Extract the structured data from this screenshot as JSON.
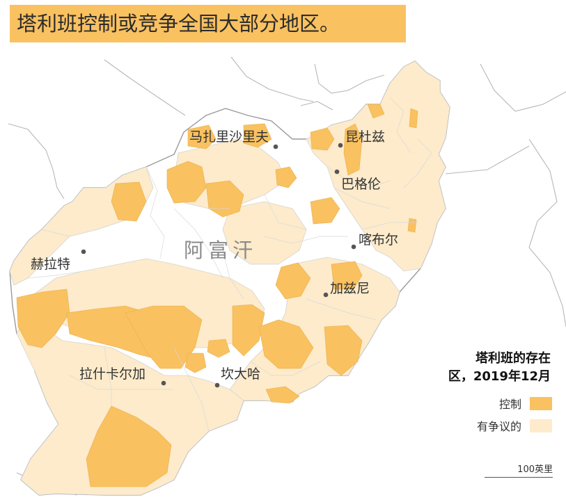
{
  "headline": "塔利班控制或竞争全国大部分地区。",
  "country_label": "阿富汗",
  "cities": [
    {
      "name": "马扎里沙里夫"
    },
    {
      "name": "昆杜兹"
    },
    {
      "name": "巴格伦"
    },
    {
      "name": "喀布尔"
    },
    {
      "name": "赫拉特"
    },
    {
      "name": "加兹尼"
    },
    {
      "name": "拉什卡尔加"
    },
    {
      "name": "坎大哈"
    }
  ],
  "legend": {
    "title_line1": "塔利班的存在",
    "title_line2": "区，2019年12月",
    "items": [
      {
        "label": "控制",
        "color": "#f9c160"
      },
      {
        "label": "有争议的",
        "color": "#fdebcb"
      }
    ]
  },
  "scale_label": "100英里",
  "colors": {
    "control": "#f9c160",
    "contested": "#fdebcb",
    "none": "#ffffff",
    "district_border": "#d4d4d4",
    "country_border": "#9a9a9a",
    "neighbor_border": "#b7b7b7"
  }
}
